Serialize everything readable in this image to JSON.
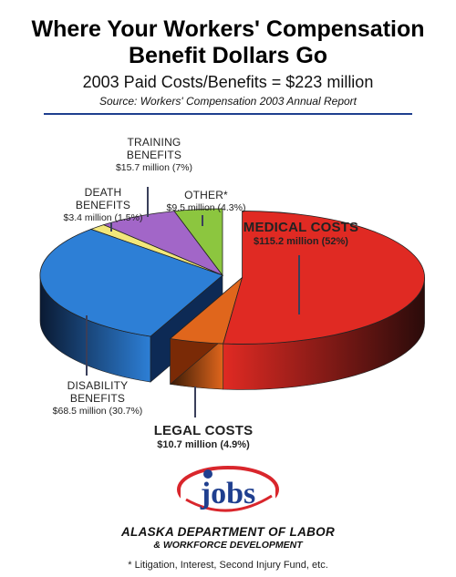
{
  "header": {
    "title_line1": "Where Your Workers' Compensation",
    "title_line2": "Benefit Dollars Go",
    "subtitle": "2003 Paid Costs/Benefits = $223 million",
    "source": "Source: Workers' Compensation 2003 Annual Report"
  },
  "chart_data": {
    "type": "pie",
    "title": "Where Your Workers' Compensation Benefit Dollars Go",
    "subtitle": "2003 Paid Costs/Benefits = $223 million",
    "total": 223,
    "unit": "million",
    "slices": [
      {
        "name_line1": "MEDICAL COSTS",
        "name_line2": "",
        "value_label": "$115.2 million (52%)",
        "value": 115.2,
        "percent": 52,
        "color": "#e02a23",
        "dark": "#2a0b0a"
      },
      {
        "name_line1": "LEGAL COSTS",
        "name_line2": "",
        "value_label": "$10.7 million (4.9%)",
        "value": 10.7,
        "percent": 4.9,
        "color": "#e0661c",
        "dark": "#3a1a06"
      },
      {
        "name_line1": "DISABILITY",
        "name_line2": "BENEFITS",
        "value_label": "$68.5 million (30.7%)",
        "value": 68.5,
        "percent": 30.7,
        "color": "#2d7fd6",
        "dark": "#0a1a33"
      },
      {
        "name_line1": "DEATH",
        "name_line2": "BENEFITS",
        "value_label": "$3.4 million (1.5%)",
        "value": 3.4,
        "percent": 1.5,
        "color": "#f2e77a",
        "dark": "#3a3610"
      },
      {
        "name_line1": "TRAINING",
        "name_line2": "BENEFITS",
        "value_label": "$15.7 million (7%)",
        "value": 15.7,
        "percent": 7,
        "color": "#a266c8",
        "dark": "#24123a"
      },
      {
        "name_line1": "OTHER*",
        "name_line2": "",
        "value_label": "$9.5 million (4.3%)",
        "value": 9.5,
        "percent": 4.3,
        "color": "#8cc63f",
        "dark": "#1c2d0a"
      }
    ]
  },
  "footer": {
    "logo_text": "jobs",
    "org_line1": "ALASKA DEPARTMENT OF LABOR",
    "org_line2": "& WORKFORCE DEVELOPMENT",
    "footnote": "* Litigation, Interest, Second Injury Fund, etc."
  }
}
